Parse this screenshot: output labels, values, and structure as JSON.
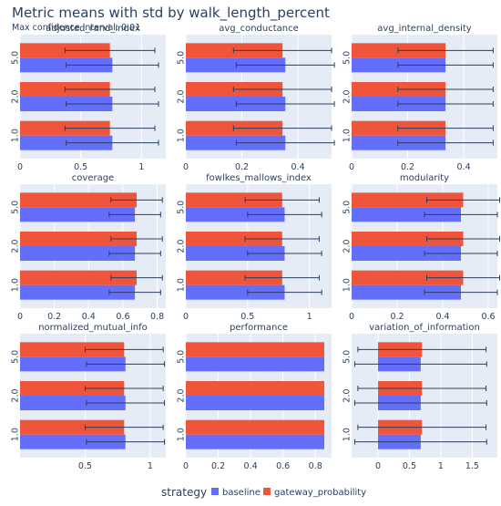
{
  "title": "Metric means with std by walk_length_percent",
  "subtitle": "Max confidence interval: 0.01",
  "legend": {
    "title": "strategy",
    "placement": "bottom-center",
    "items": [
      {
        "name": "baseline",
        "color": "#636efa"
      },
      {
        "name": "gateway_probability",
        "color": "#ef553b"
      }
    ]
  },
  "colors": {
    "plot_bg": "#e5ecf6",
    "grid": "#ffffff",
    "error_bar": "#2a3f5f",
    "text": "#2a3f5f"
  },
  "chart_data": [
    {
      "type": "bar",
      "orientation": "horizontal",
      "title": "adjusted_rand_index",
      "categories": [
        "1.0",
        "2.0",
        "5.0"
      ],
      "xlim": [
        0,
        1.2
      ],
      "xticks": [
        0,
        0.5,
        1
      ],
      "xticklabels": [
        "0",
        "0.5",
        "1"
      ],
      "series": [
        {
          "name": "baseline",
          "values": [
            0.76,
            0.76,
            0.76
          ],
          "std": [
            0.38,
            0.38,
            0.38
          ]
        },
        {
          "name": "gateway_probability",
          "values": [
            0.74,
            0.74,
            0.74
          ],
          "std": [
            0.37,
            0.37,
            0.37
          ]
        }
      ]
    },
    {
      "type": "bar",
      "orientation": "horizontal",
      "title": "avg_conductance",
      "categories": [
        "1.0",
        "2.0",
        "5.0"
      ],
      "xlim": [
        0,
        0.52
      ],
      "xticks": [
        0,
        0.2,
        0.4
      ],
      "xticklabels": [
        "0",
        "0.2",
        "0.4"
      ],
      "series": [
        {
          "name": "baseline",
          "values": [
            0.355,
            0.355,
            0.355
          ],
          "std": [
            0.175,
            0.175,
            0.175
          ]
        },
        {
          "name": "gateway_probability",
          "values": [
            0.345,
            0.345,
            0.345
          ],
          "std": [
            0.175,
            0.175,
            0.175
          ]
        }
      ]
    },
    {
      "type": "bar",
      "orientation": "horizontal",
      "title": "avg_internal_density",
      "categories": [
        "1.0",
        "2.0",
        "5.0"
      ],
      "xlim": [
        0,
        0.52
      ],
      "xticks": [
        0,
        0.2,
        0.4
      ],
      "xticklabels": [
        "0",
        "0.2",
        "0.4"
      ],
      "series": [
        {
          "name": "baseline",
          "values": [
            0.335,
            0.335,
            0.335
          ],
          "std": [
            0.17,
            0.17,
            0.17
          ]
        },
        {
          "name": "gateway_probability",
          "values": [
            0.335,
            0.335,
            0.335
          ],
          "std": [
            0.17,
            0.17,
            0.17
          ]
        }
      ]
    },
    {
      "type": "bar",
      "orientation": "horizontal",
      "title": "coverage",
      "categories": [
        "1.0",
        "2.0",
        "5.0"
      ],
      "xlim": [
        0,
        0.85
      ],
      "xticks": [
        0,
        0.2,
        0.4,
        0.6,
        0.8
      ],
      "xticklabels": [
        "0",
        "0.2",
        "0.4",
        "0.6",
        "0.8"
      ],
      "series": [
        {
          "name": "baseline",
          "values": [
            0.67,
            0.67,
            0.67
          ],
          "std": [
            0.15,
            0.15,
            0.15
          ]
        },
        {
          "name": "gateway_probability",
          "values": [
            0.68,
            0.68,
            0.68
          ],
          "std": [
            0.15,
            0.15,
            0.15
          ]
        }
      ]
    },
    {
      "type": "bar",
      "orientation": "horizontal",
      "title": "fowlkes_mallows_index",
      "categories": [
        "1.0",
        "2.0",
        "5.0"
      ],
      "xlim": [
        0,
        1.18
      ],
      "xticks": [
        0,
        0.5,
        1
      ],
      "xticklabels": [
        "0",
        "0.5",
        "1"
      ],
      "series": [
        {
          "name": "baseline",
          "values": [
            0.8,
            0.8,
            0.8
          ],
          "std": [
            0.3,
            0.3,
            0.3
          ]
        },
        {
          "name": "gateway_probability",
          "values": [
            0.78,
            0.78,
            0.78
          ],
          "std": [
            0.3,
            0.3,
            0.3
          ]
        }
      ]
    },
    {
      "type": "bar",
      "orientation": "horizontal",
      "title": "modularity",
      "categories": [
        "1.0",
        "2.0",
        "5.0"
      ],
      "xlim": [
        0,
        0.64
      ],
      "xticks": [
        0,
        0.2,
        0.4,
        0.6
      ],
      "xticklabels": [
        "0",
        "0.2",
        "0.4",
        "0.6"
      ],
      "series": [
        {
          "name": "baseline",
          "values": [
            0.48,
            0.48,
            0.48
          ],
          "std": [
            0.16,
            0.16,
            0.16
          ]
        },
        {
          "name": "gateway_probability",
          "values": [
            0.49,
            0.49,
            0.49
          ],
          "std": [
            0.16,
            0.16,
            0.16
          ]
        }
      ]
    },
    {
      "type": "bar",
      "orientation": "horizontal",
      "title": "normalized_mutual_info",
      "categories": [
        "1.0",
        "2.0",
        "5.0"
      ],
      "xlim": [
        0,
        1.12
      ],
      "xticks": [
        0.5,
        1
      ],
      "xticklabels": [
        "0.5",
        "1"
      ],
      "series": [
        {
          "name": "baseline",
          "values": [
            0.81,
            0.81,
            0.81
          ],
          "std": [
            0.3,
            0.3,
            0.3
          ]
        },
        {
          "name": "gateway_probability",
          "values": [
            0.8,
            0.8,
            0.8
          ],
          "std": [
            0.3,
            0.3,
            0.3
          ]
        }
      ]
    },
    {
      "type": "bar",
      "orientation": "horizontal",
      "title": "performance",
      "categories": [
        "1.0",
        "2.0",
        "5.0"
      ],
      "xlim": [
        0,
        0.9
      ],
      "xticks": [
        0,
        0.2,
        0.4,
        0.6,
        0.8
      ],
      "xticklabels": [
        "0",
        "0.2",
        "0.4",
        "0.6",
        "0.8"
      ],
      "series": [
        {
          "name": "baseline",
          "values": [
            0.855,
            0.855,
            0.855
          ],
          "std": [
            0.0,
            0.0,
            0.0
          ]
        },
        {
          "name": "gateway_probability",
          "values": [
            0.855,
            0.855,
            0.855
          ],
          "std": [
            0.0,
            0.0,
            0.0
          ]
        }
      ]
    },
    {
      "type": "bar",
      "orientation": "horizontal",
      "title": "variation_of_information",
      "categories": [
        "1.0",
        "2.0",
        "5.0"
      ],
      "xlim": [
        -0.42,
        1.9
      ],
      "xticks": [
        0,
        0.5,
        1,
        1.5
      ],
      "xticklabels": [
        "0",
        "0.5",
        "1",
        "1.5"
      ],
      "series": [
        {
          "name": "baseline",
          "values": [
            0.68,
            0.68,
            0.68
          ],
          "std": [
            1.05,
            1.05,
            1.05
          ]
        },
        {
          "name": "gateway_probability",
          "values": [
            0.7,
            0.7,
            0.7
          ],
          "std": [
            1.02,
            1.02,
            1.02
          ]
        }
      ]
    }
  ]
}
